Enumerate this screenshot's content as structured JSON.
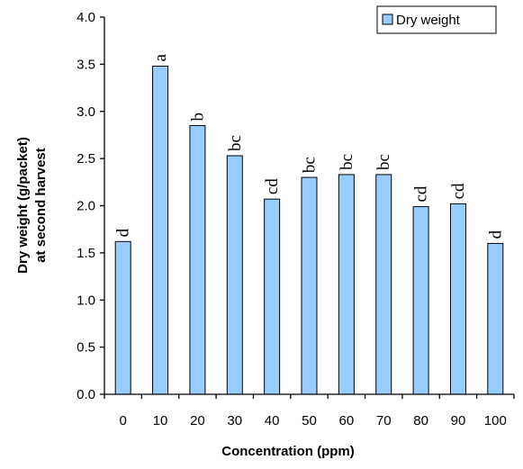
{
  "chart_data": {
    "type": "bar",
    "categories": [
      "0",
      "10",
      "20",
      "30",
      "40",
      "50",
      "60",
      "70",
      "80",
      "90",
      "100"
    ],
    "series": [
      {
        "name": "Dry weight",
        "values": [
          1.62,
          3.48,
          2.85,
          2.53,
          2.07,
          2.3,
          2.33,
          2.33,
          1.99,
          2.02,
          1.6
        ],
        "labels": [
          "d",
          "a",
          "b",
          "bc",
          "cd",
          "bc",
          "bc",
          "bc",
          "cd",
          "cd",
          "d"
        ]
      }
    ],
    "xlabel": "Concentration (ppm)",
    "ylabel_lines": [
      "Dry weight (g/packet)",
      "at second harvest"
    ],
    "ylim": [
      0,
      4.0
    ],
    "yticks": [
      "0.0",
      "0.5",
      "1.0",
      "1.5",
      "2.0",
      "2.5",
      "3.0",
      "3.5",
      "4.0"
    ],
    "grid": false,
    "legend_position": "top-right",
    "bar_color": "#99ccff",
    "bar_edge": "#000000"
  }
}
